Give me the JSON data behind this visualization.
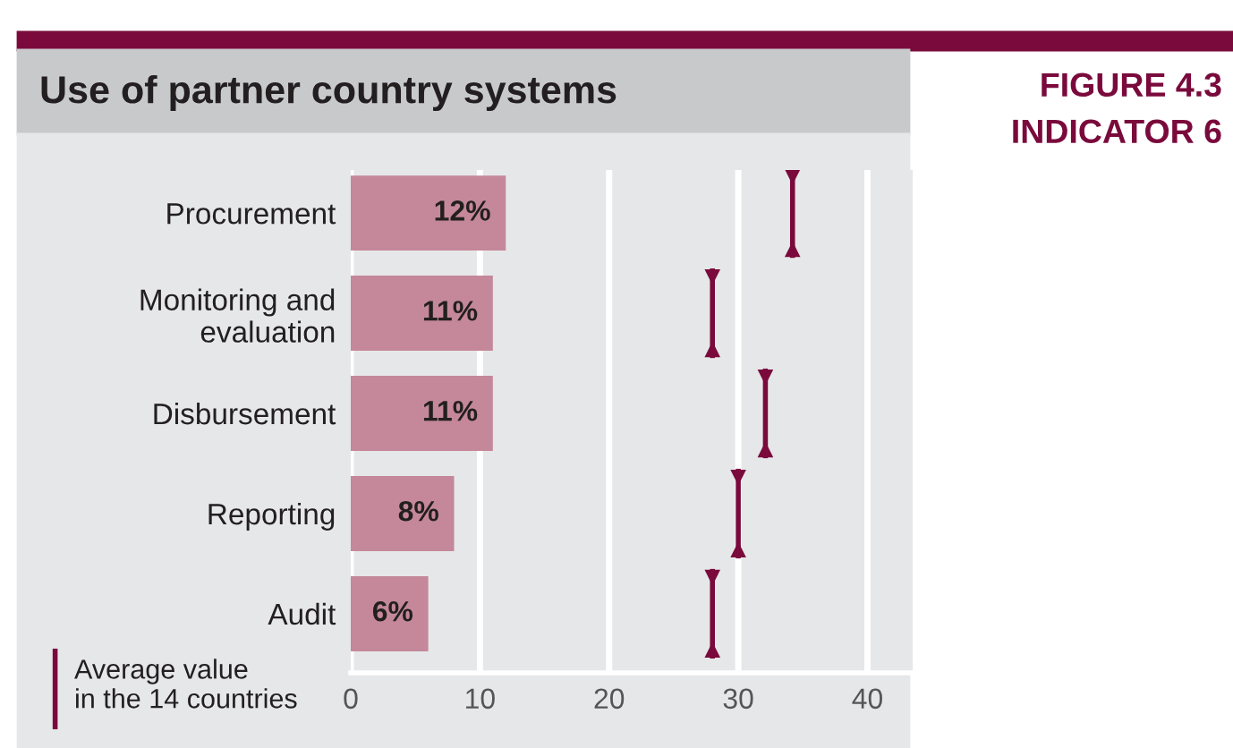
{
  "chart_data": {
    "type": "bar",
    "orientation": "horizontal",
    "title": "Use of partner country systems",
    "annotations": [
      "FIGURE 4.3",
      "INDICATOR 6"
    ],
    "categories": [
      "Procurement",
      "Monitoring and\nevaluation",
      "Disbursement",
      "Reporting",
      "Audit"
    ],
    "series": [
      {
        "color": "#c4889a",
        "values": [
          12,
          11,
          11,
          8,
          6
        ],
        "value_labels": [
          "12%",
          "11%",
          "11%",
          "8%",
          "6%"
        ]
      },
      {
        "type": "scatter",
        "name": "Average value\nin the 14 countries",
        "color": "#7a0a3c",
        "x": [
          "Procurement",
          "Monitoring and\nevaluation",
          "Disbursement",
          "Reporting",
          "Audit"
        ],
        "values": [
          34.2,
          28.0,
          32.1,
          30.0,
          28.0
        ]
      }
    ],
    "xlim": [
      0,
      43.5
    ],
    "xticks": [
      0,
      10,
      20,
      30,
      40
    ],
    "grid": "x",
    "legend": "bottom left"
  }
}
